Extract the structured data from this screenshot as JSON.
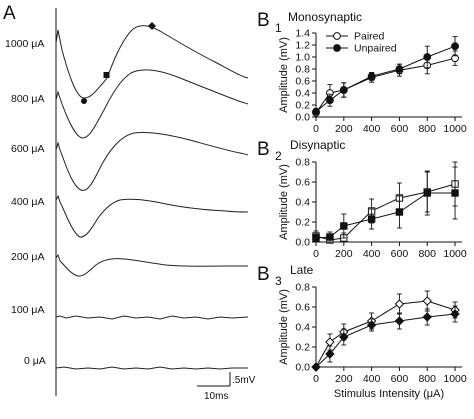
{
  "panel_a": {
    "letter": "A",
    "trace_labels": [
      "1000 μA",
      "800 μA",
      "600 μA",
      "400 μA",
      "200 μA",
      "100 μA",
      "0 μA"
    ],
    "scale_bar": {
      "time_label": "10ms",
      "voltage_label": ".5mV"
    }
  },
  "chart_data": [
    {
      "type": "line",
      "letter": "B",
      "subscript": "1",
      "title": "Monosynaptic",
      "xlabel": "",
      "ylabel": "Amplitude (mV)",
      "x": [
        0,
        100,
        200,
        400,
        600,
        800,
        1000
      ],
      "xticks": [
        "0",
        "200",
        "400",
        "600",
        "800",
        "1000"
      ],
      "xtick_values": [
        0,
        200,
        400,
        600,
        800,
        1000
      ],
      "xlim": [
        0,
        1050
      ],
      "ylim": [
        0,
        1.4
      ],
      "yticks": [
        "0.0",
        "0.2",
        "0.4",
        "0.6",
        "0.8",
        "1.0",
        "1.2",
        "1.4"
      ],
      "ytick_values": [
        0,
        0.2,
        0.4,
        0.6,
        0.8,
        1.0,
        1.2,
        1.4
      ],
      "legend_position": "top-left",
      "series": [
        {
          "name": "Paired",
          "marker": "open-circle",
          "values": [
            0.07,
            0.4,
            0.45,
            0.66,
            0.78,
            0.86,
            0.98
          ],
          "errors": [
            0.03,
            0.14,
            0.12,
            0.08,
            0.1,
            0.14,
            0.12
          ]
        },
        {
          "name": "Unpaired",
          "marker": "filled-circle",
          "values": [
            0.09,
            0.28,
            0.45,
            0.68,
            0.8,
            1.0,
            1.18
          ],
          "errors": [
            0.03,
            0.1,
            0.12,
            0.06,
            0.08,
            0.18,
            0.16
          ]
        }
      ]
    },
    {
      "type": "line",
      "letter": "B",
      "subscript": "2",
      "title": "Disynaptic",
      "xlabel": "",
      "ylabel": "Amplitude (mV)",
      "x": [
        0,
        100,
        200,
        400,
        600,
        800,
        1000
      ],
      "xticks": [
        "0",
        "200",
        "400",
        "600",
        "800",
        "1000"
      ],
      "xtick_values": [
        0,
        200,
        400,
        600,
        800,
        1000
      ],
      "xlim": [
        0,
        1050
      ],
      "ylim": [
        0,
        0.8
      ],
      "yticks": [
        "0.0",
        "0.2",
        "0.4",
        "0.6",
        "0.8"
      ],
      "ytick_values": [
        0,
        0.2,
        0.4,
        0.6,
        0.8
      ],
      "legend_position": "none",
      "series": [
        {
          "name": "",
          "marker": "open-square",
          "values": [
            0.06,
            0.02,
            0.04,
            0.31,
            0.44,
            0.5,
            0.58
          ],
          "errors": [
            0.05,
            0.04,
            0.05,
            0.12,
            0.15,
            0.2,
            0.22
          ]
        },
        {
          "name": "",
          "marker": "filled-square",
          "values": [
            0.04,
            0.05,
            0.16,
            0.23,
            0.3,
            0.49,
            0.49
          ],
          "errors": [
            0.04,
            0.05,
            0.12,
            0.1,
            0.16,
            0.22,
            0.26
          ]
        }
      ]
    },
    {
      "type": "line",
      "letter": "B",
      "subscript": "3",
      "title": "Late",
      "xlabel": "Stimulus Intensity (μA)",
      "ylabel": "Amplitude (mV)",
      "x": [
        0,
        100,
        200,
        400,
        600,
        800,
        1000
      ],
      "xticks": [
        "0",
        "200",
        "400",
        "600",
        "800",
        "1000"
      ],
      "xtick_values": [
        0,
        200,
        400,
        600,
        800,
        1000
      ],
      "xlim": [
        0,
        1050
      ],
      "ylim": [
        0,
        0.8
      ],
      "yticks": [
        "0.0",
        "0.2",
        "0.4",
        "0.6",
        "0.8"
      ],
      "ytick_values": [
        0,
        0.2,
        0.4,
        0.6,
        0.8
      ],
      "legend_position": "none",
      "series": [
        {
          "name": "",
          "marker": "open-diamond",
          "values": [
            0.0,
            0.25,
            0.35,
            0.46,
            0.63,
            0.66,
            0.57
          ],
          "errors": [
            0.0,
            0.08,
            0.08,
            0.08,
            0.1,
            0.1,
            0.08
          ]
        },
        {
          "name": "",
          "marker": "filled-diamond",
          "values": [
            0.0,
            0.13,
            0.3,
            0.42,
            0.46,
            0.5,
            0.53
          ],
          "errors": [
            0.0,
            0.08,
            0.08,
            0.06,
            0.08,
            0.08,
            0.08
          ]
        }
      ]
    }
  ]
}
